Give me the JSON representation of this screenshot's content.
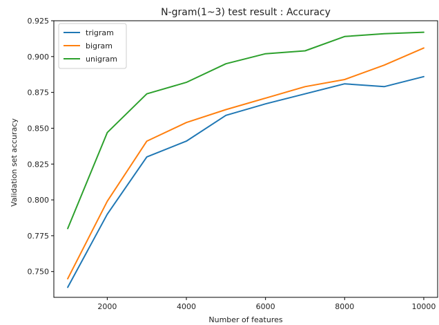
{
  "chart_data": {
    "type": "line",
    "title": "N-gram(1~3) test result : Accuracy",
    "xlabel": "Number of features",
    "ylabel": "Validation set accuracy",
    "x": [
      1000,
      2000,
      3000,
      4000,
      5000,
      6000,
      7000,
      8000,
      9000,
      10000
    ],
    "xlim": [
      650,
      10350
    ],
    "ylim": [
      0.732,
      0.925
    ],
    "xticks": [
      2000,
      4000,
      6000,
      8000,
      10000
    ],
    "xtick_labels": [
      "2000",
      "4000",
      "6000",
      "8000",
      "10000"
    ],
    "yticks": [
      0.75,
      0.775,
      0.8,
      0.825,
      0.85,
      0.875,
      0.9,
      0.925
    ],
    "ytick_labels": [
      "0.750",
      "0.775",
      "0.800",
      "0.825",
      "0.850",
      "0.875",
      "0.900",
      "0.925"
    ],
    "grid": false,
    "legend_position": "top-left",
    "series": [
      {
        "name": "trigram",
        "color": "#1f77b4",
        "values": [
          0.739,
          0.79,
          0.83,
          0.841,
          0.859,
          0.867,
          0.874,
          0.881,
          0.879,
          0.886
        ]
      },
      {
        "name": "bigram",
        "color": "#ff7f0e",
        "values": [
          0.745,
          0.799,
          0.841,
          0.854,
          0.863,
          0.871,
          0.879,
          0.884,
          0.894,
          0.906
        ]
      },
      {
        "name": "unigram",
        "color": "#2ca02c",
        "values": [
          0.78,
          0.847,
          0.874,
          0.882,
          0.895,
          0.902,
          0.904,
          0.914,
          0.916,
          0.917
        ]
      }
    ]
  }
}
